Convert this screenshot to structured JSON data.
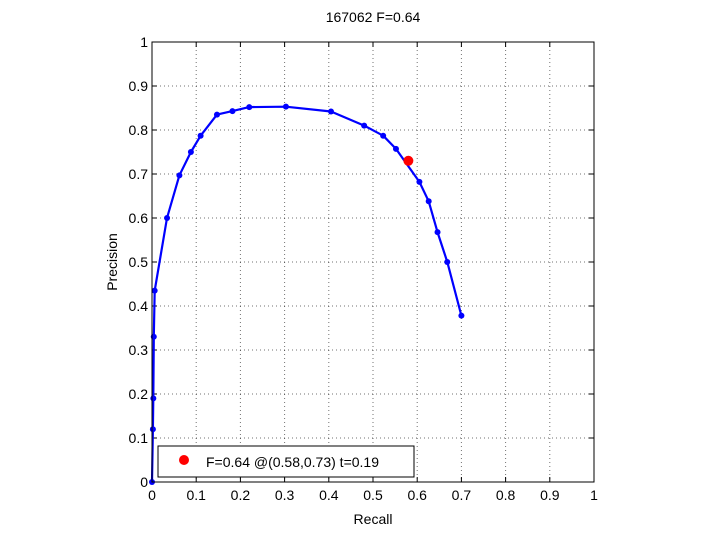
{
  "chart_data": {
    "type": "line",
    "title": "167062 F=0.64",
    "xlabel": "Recall",
    "ylabel": "Precision",
    "xlim": [
      0,
      1
    ],
    "ylim": [
      0,
      1
    ],
    "xticks": [
      "0",
      "0.1",
      "0.2",
      "0.3",
      "0.4",
      "0.5",
      "0.6",
      "0.7",
      "0.8",
      "0.9",
      "1"
    ],
    "yticks": [
      "0",
      "0.1",
      "0.2",
      "0.3",
      "0.4",
      "0.5",
      "0.6",
      "0.7",
      "0.8",
      "0.9",
      "1"
    ],
    "grid": true,
    "grid_style": "dotted",
    "legend_position": "bottom-left",
    "series": [
      {
        "color": "#0000ff",
        "marker": "dot",
        "points": [
          [
            0.0,
            0.0
          ],
          [
            0.002,
            0.12
          ],
          [
            0.003,
            0.19
          ],
          [
            0.004,
            0.33
          ],
          [
            0.006,
            0.435
          ],
          [
            0.034,
            0.6
          ],
          [
            0.062,
            0.697
          ],
          [
            0.088,
            0.75
          ],
          [
            0.11,
            0.787
          ],
          [
            0.147,
            0.835
          ],
          [
            0.182,
            0.843
          ],
          [
            0.22,
            0.852
          ],
          [
            0.303,
            0.853
          ],
          [
            0.405,
            0.842
          ],
          [
            0.48,
            0.81
          ],
          [
            0.523,
            0.787
          ],
          [
            0.552,
            0.757
          ],
          [
            0.605,
            0.682
          ],
          [
            0.626,
            0.638
          ],
          [
            0.646,
            0.568
          ],
          [
            0.668,
            0.5
          ],
          [
            0.7,
            0.378
          ]
        ]
      }
    ],
    "best_point": {
      "x": 0.58,
      "y": 0.73,
      "color": "#ff0000",
      "label": "F=0.64 @(0.58,0.73) t=0.19"
    }
  }
}
